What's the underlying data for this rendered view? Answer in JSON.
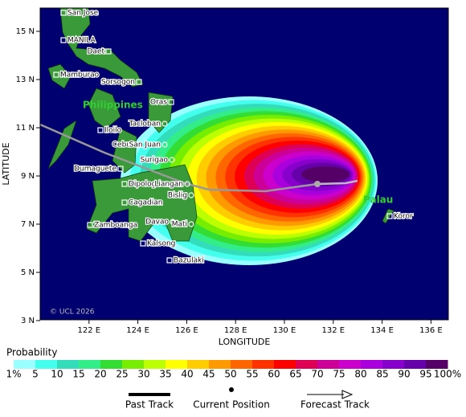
{
  "map": {
    "x_label": "LONGITUDE",
    "y_label": "LATITUDE",
    "lon_ticks": [
      {
        "value": 122,
        "label": "122 E"
      },
      {
        "value": 124,
        "label": "124 E"
      },
      {
        "value": 126,
        "label": "126 E"
      },
      {
        "value": 128,
        "label": "128 E"
      },
      {
        "value": 130,
        "label": "130 E"
      },
      {
        "value": 132,
        "label": "132 E"
      },
      {
        "value": 134,
        "label": "134 E"
      },
      {
        "value": 136,
        "label": "136 E"
      }
    ],
    "lat_ticks": [
      {
        "value": 15,
        "label": "15 N"
      },
      {
        "value": 13,
        "label": "13 N"
      },
      {
        "value": 11,
        "label": "11 N"
      },
      {
        "value": 9,
        "label": "9 N"
      },
      {
        "value": 7,
        "label": "7 N"
      },
      {
        "value": 5,
        "label": "5 N"
      },
      {
        "value": 3,
        "label": "3 N"
      }
    ],
    "places": [
      "San Jose",
      "MANILA",
      "Daet",
      "Mamburao",
      "Sorsogon",
      "Oras",
      "Tacloban",
      "Iloilo",
      "Cebu",
      "San Juan",
      "Surigao",
      "Dumaguete",
      "Dipolog",
      "Liangan",
      "Bislig",
      "Cagadian",
      "Davao",
      "Mati",
      "Zamboanga",
      "Kalsong",
      "Bazulaki",
      "Koror"
    ],
    "regions": [
      "Philippines",
      "Palau"
    ],
    "credit": "© UCL 2026"
  },
  "legend": {
    "title": "Probability",
    "labels": [
      "1%",
      "5",
      "10",
      "15",
      "20",
      "25",
      "30",
      "35",
      "40",
      "45",
      "50",
      "55",
      "60",
      "65",
      "70",
      "75",
      "80",
      "85",
      "90",
      "95",
      "100%"
    ],
    "colors": [
      "#99ffff",
      "#44ffee",
      "#33ddbb",
      "#33ee88",
      "#33dd33",
      "#77ee00",
      "#bbff00",
      "#ffff00",
      "#ffcc00",
      "#ff9900",
      "#ff6600",
      "#ff3300",
      "#ff0000",
      "#dd0055",
      "#cc0099",
      "#cc00cc",
      "#aa00dd",
      "#8800cc",
      "#6600aa",
      "#550066"
    ],
    "past_track": "Past Track",
    "current_position": "Current Position",
    "forecast_track": "Forecast Track"
  }
}
